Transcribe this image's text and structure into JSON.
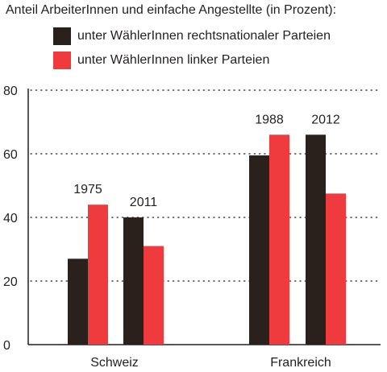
{
  "chart_data": {
    "type": "bar",
    "title": "Anteil ArbeiterInnen und einfache Angestellte (in Prozent):",
    "xlabel": "",
    "ylabel": "",
    "ylim": [
      0,
      80
    ],
    "yticks": [
      0,
      20,
      40,
      60,
      80
    ],
    "grid": true,
    "legend_position": "top",
    "series": [
      {
        "name": "unter WählerInnen rechtsnationaler Parteien",
        "color": "#2b211c"
      },
      {
        "name": "unter WählerInnen linker Parteien",
        "color": "#ef3b3e"
      }
    ],
    "groups": [
      {
        "country": "Schweiz",
        "years": [
          {
            "year": "1975",
            "values": [
              27,
              44
            ]
          },
          {
            "year": "2011",
            "values": [
              40,
              31
            ]
          }
        ]
      },
      {
        "country": "Frankreich",
        "years": [
          {
            "year": "1988",
            "values": [
              59.5,
              66
            ]
          },
          {
            "year": "2012",
            "values": [
              66,
              47.5
            ]
          }
        ]
      }
    ]
  }
}
